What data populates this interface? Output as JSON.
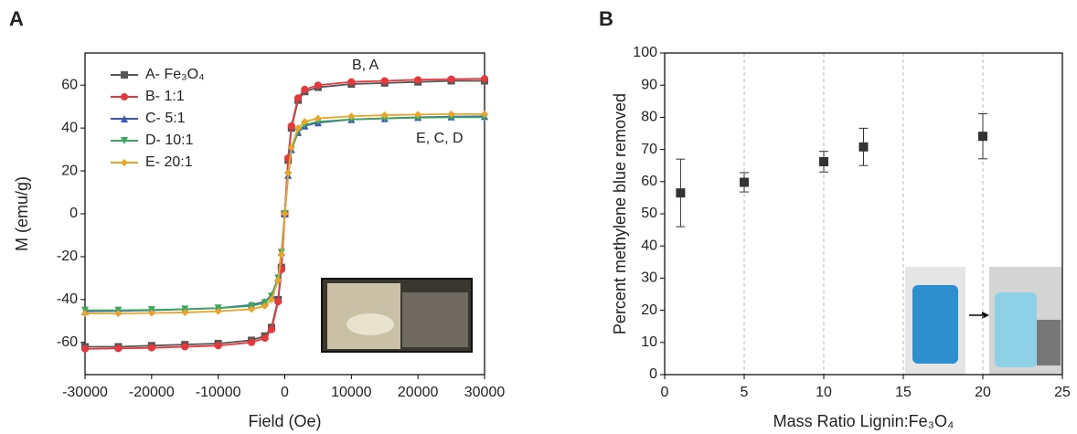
{
  "chart_data": [
    {
      "type": "line",
      "label": "A",
      "xlabel": "Field (Oe)",
      "ylabel": "M (emu/g)",
      "x": [
        -30000,
        -25000,
        -20000,
        -15000,
        -10000,
        -5000,
        -3000,
        -2000,
        -1000,
        -500,
        0,
        500,
        1000,
        2000,
        3000,
        5000,
        10000,
        15000,
        20000,
        25000,
        30000
      ],
      "series": [
        {
          "name": "A- Fe₃O₄",
          "color": "#555555",
          "marker": "square",
          "values": [
            -62,
            -62,
            -61.5,
            -61,
            -60.5,
            -59,
            -57,
            -53,
            -40,
            -25,
            0,
            25,
            40,
            53,
            57,
            59,
            60.5,
            61,
            61.5,
            62,
            62
          ]
        },
        {
          "name": "B- 1:1",
          "color": "#e8383d",
          "marker": "circle",
          "values": [
            -63,
            -62.8,
            -62.5,
            -62,
            -61.5,
            -60,
            -58,
            -54,
            -41,
            -26,
            0,
            26,
            41,
            54,
            58,
            60,
            61.5,
            62,
            62.5,
            62.8,
            63
          ]
        },
        {
          "name": "C- 5:1",
          "color": "#3a55c0",
          "marker": "triangle-up",
          "values": [
            -45.5,
            -45.3,
            -45,
            -44.5,
            -44,
            -42.5,
            -41,
            -38,
            -30,
            -18,
            0,
            18,
            30,
            38,
            41,
            42.5,
            44,
            44.5,
            45,
            45.3,
            45.5
          ]
        },
        {
          "name": "D- 10:1",
          "color": "#3aa85a",
          "marker": "triangle-down",
          "values": [
            -45,
            -45,
            -44.8,
            -44.5,
            -44,
            -43,
            -41.5,
            -38.5,
            -30,
            -18,
            0,
            18,
            30,
            38.5,
            41.5,
            43,
            44,
            44.5,
            44.8,
            45,
            45
          ]
        },
        {
          "name": "E- 20:1",
          "color": "#e8a526",
          "marker": "diamond",
          "values": [
            -46.5,
            -46.5,
            -46.3,
            -46,
            -45.5,
            -44.5,
            -43,
            -40,
            -31,
            -19,
            0,
            19,
            31,
            40,
            43,
            44.5,
            45.5,
            46,
            46.3,
            46.5,
            46.5
          ]
        }
      ],
      "xlim": [
        -30000,
        30000
      ],
      "xticks": [
        -30000,
        -20000,
        -10000,
        0,
        10000,
        20000,
        30000
      ],
      "ylim": [
        -75,
        75
      ],
      "yticks": [
        -60,
        -40,
        -20,
        0,
        20,
        40,
        60
      ],
      "legend": "upper left",
      "annotations": [
        "B, A",
        "E, C, D"
      ]
    },
    {
      "type": "scatter",
      "label": "B",
      "xlabel": "Mass Ratio Lignin:Fe₃O₄",
      "ylabel": "Percent methylene blue removed",
      "x": [
        1,
        5,
        10,
        12.5,
        20
      ],
      "values": [
        56.5,
        59.8,
        66.2,
        70.8,
        74.1
      ],
      "errors": [
        10.5,
        3,
        3.2,
        5.8,
        7
      ],
      "color": "#333333",
      "xlim": [
        0,
        25
      ],
      "xticks": [
        0,
        5,
        10,
        15,
        20,
        25
      ],
      "ylim": [
        0,
        100
      ],
      "yticks": [
        0,
        10,
        20,
        30,
        40,
        50,
        60,
        70,
        80,
        90,
        100
      ],
      "grid": true
    }
  ]
}
